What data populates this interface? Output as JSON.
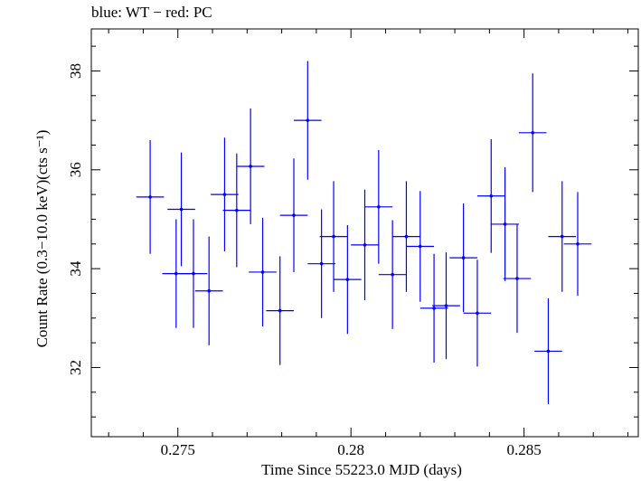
{
  "chart_data": {
    "type": "scatter",
    "title": "blue: WT − red: PC",
    "xlabel": "Time Since 55223.0 MJD (days)",
    "ylabel": "Count Rate (0.3−10.0 keV)(cts s⁻¹)",
    "xlim": [
      0.2725,
      0.2883
    ],
    "ylim": [
      30.6,
      38.85
    ],
    "xticks": [
      0.275,
      0.28,
      0.285
    ],
    "xtick_labels": [
      "0.275",
      "0.28",
      "0.285"
    ],
    "yticks": [
      32,
      34,
      36,
      38
    ],
    "ytick_labels": [
      "32",
      "34",
      "36",
      "38"
    ],
    "grid": false,
    "series": [
      {
        "color": "#0000ff",
        "x_halfwidth": 0.0004,
        "points": [
          {
            "x": 0.2742,
            "y": 35.45,
            "yerr": 1.15
          },
          {
            "x": 0.27495,
            "y": 33.9,
            "yerr": 1.1
          },
          {
            "x": 0.2751,
            "y": 35.2,
            "yerr": 1.15
          },
          {
            "x": 0.27545,
            "y": 33.9,
            "yerr": 1.1
          },
          {
            "x": 0.2759,
            "y": 33.55,
            "yerr": 1.1
          },
          {
            "x": 0.27635,
            "y": 35.5,
            "yerr": 1.15
          },
          {
            "x": 0.2767,
            "y": 35.18,
            "yerr": 1.15
          },
          {
            "x": 0.2771,
            "y": 36.07,
            "yerr": 1.17
          },
          {
            "x": 0.27745,
            "y": 33.93,
            "yerr": 1.1
          },
          {
            "x": 0.27795,
            "y": 33.15,
            "yerr": 1.1
          },
          {
            "x": 0.27835,
            "y": 35.08,
            "yerr": 1.15
          },
          {
            "x": 0.27875,
            "y": 37.0,
            "yerr": 1.2
          },
          {
            "x": 0.27915,
            "y": 34.1,
            "yerr": 1.1
          },
          {
            "x": 0.2795,
            "y": 34.65,
            "yerr": 1.12
          },
          {
            "x": 0.2799,
            "y": 33.78,
            "yerr": 1.1
          },
          {
            "x": 0.2804,
            "y": 34.48,
            "yerr": 1.12
          },
          {
            "x": 0.2808,
            "y": 35.25,
            "yerr": 1.15
          },
          {
            "x": 0.2812,
            "y": 33.88,
            "yerr": 1.1
          },
          {
            "x": 0.2816,
            "y": 34.65,
            "yerr": 1.12
          },
          {
            "x": 0.282,
            "y": 34.45,
            "yerr": 1.12
          },
          {
            "x": 0.2824,
            "y": 33.2,
            "yerr": 1.1
          },
          {
            "x": 0.28275,
            "y": 33.25,
            "yerr": 1.08
          },
          {
            "x": 0.28325,
            "y": 34.22,
            "yerr": 1.1
          },
          {
            "x": 0.28365,
            "y": 33.1,
            "yerr": 1.08
          },
          {
            "x": 0.28405,
            "y": 35.47,
            "yerr": 1.15
          },
          {
            "x": 0.28445,
            "y": 34.9,
            "yerr": 1.15
          },
          {
            "x": 0.2848,
            "y": 33.8,
            "yerr": 1.1
          },
          {
            "x": 0.28525,
            "y": 36.75,
            "yerr": 1.2
          },
          {
            "x": 0.2857,
            "y": 32.33,
            "yerr": 1.07
          },
          {
            "x": 0.2861,
            "y": 34.65,
            "yerr": 1.12
          },
          {
            "x": 0.28655,
            "y": 34.5,
            "yerr": 1.05
          }
        ]
      }
    ]
  }
}
